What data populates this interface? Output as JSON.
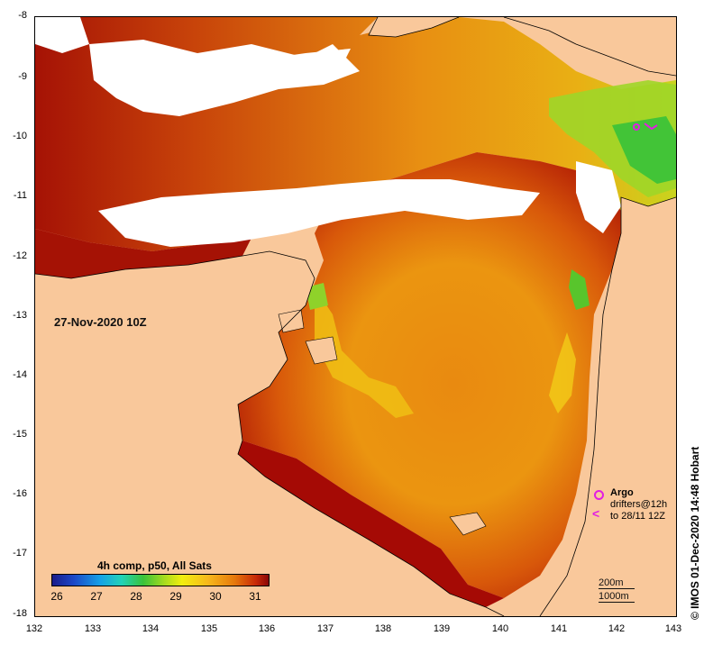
{
  "map": {
    "timestamp": "27-Nov-2020 10Z",
    "y_axis_labels": [
      "-8",
      "-9",
      "-10",
      "-11",
      "-12",
      "-13",
      "-14",
      "-15",
      "-16",
      "-17",
      "-18"
    ],
    "x_axis_labels": [
      "132",
      "133",
      "134",
      "135",
      "136",
      "137",
      "138",
      "139",
      "140",
      "141",
      "142",
      "143"
    ],
    "credit": "© IMOS 01-Dec-2020 14:48 Hobart"
  },
  "colorbar": {
    "title": "4h comp, p50, All Sats",
    "ticks": [
      "26",
      "27",
      "28",
      "29",
      "30",
      "31"
    ]
  },
  "legend": {
    "argo": "Argo",
    "drifters_line1": "drifters@12h",
    "drifters_line2": "to 28/11 12Z",
    "scale_200": "200m",
    "scale_1000": "1000m"
  },
  "colors": {
    "land": "#f9c89b",
    "cloud": "#ffffff",
    "markers": "#e21ee2"
  }
}
